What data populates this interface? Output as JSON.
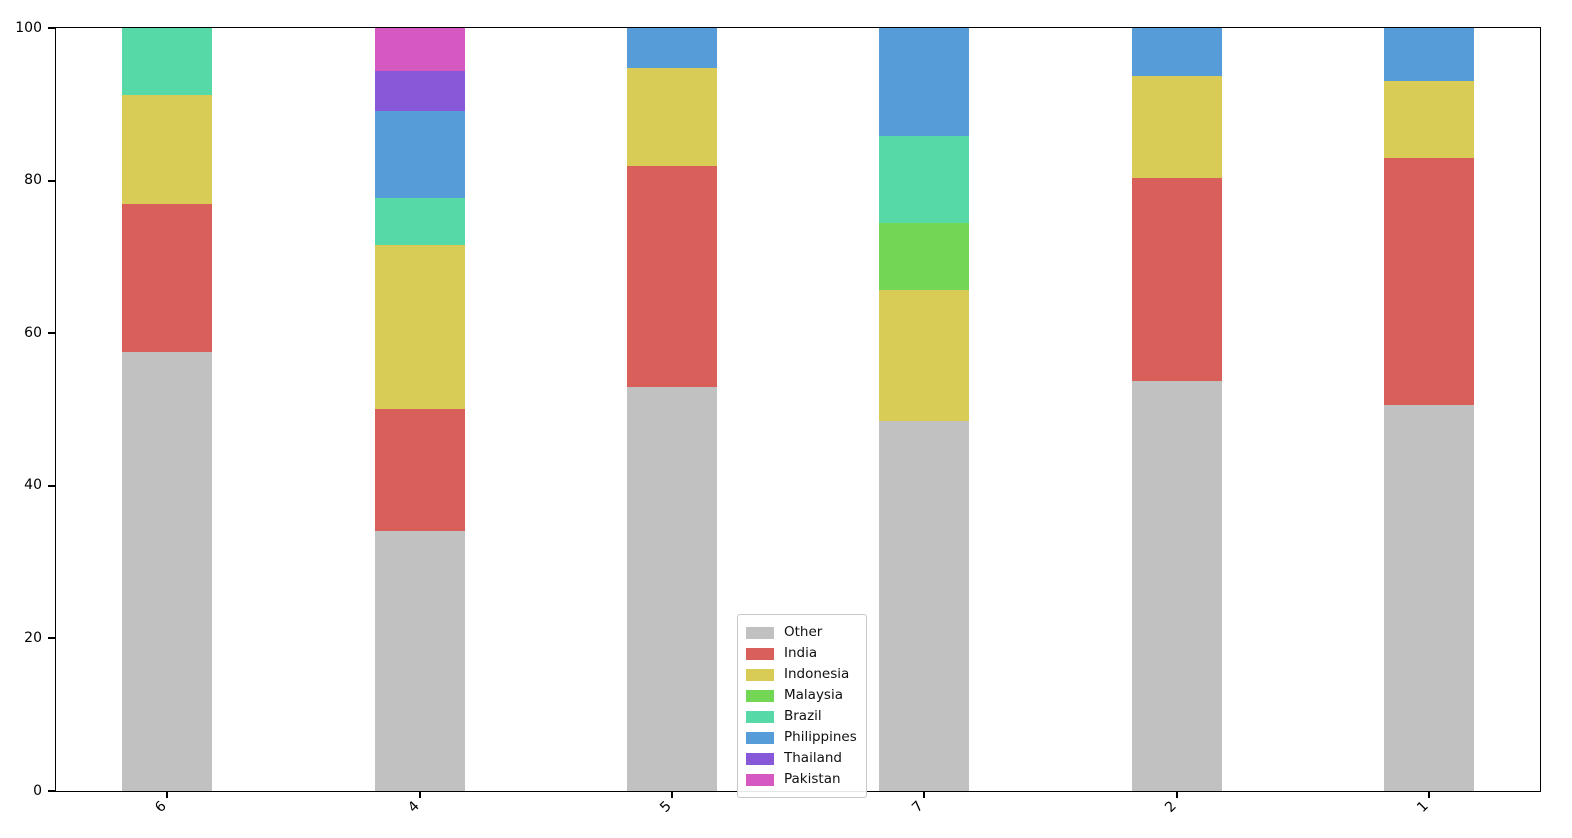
{
  "chart_data": {
    "type": "bar",
    "stacked": true,
    "normalized_percent": true,
    "title": "",
    "xlabel": "",
    "ylabel": "",
    "ylim": [
      0,
      100
    ],
    "yticks": [
      0,
      20,
      40,
      60,
      80,
      100
    ],
    "grid": false,
    "legend_position": "center-bottom-inside",
    "categories": [
      "6",
      "4",
      "5",
      "7",
      "2",
      "1"
    ],
    "series": [
      {
        "name": "Other",
        "color": "#c1c1c1",
        "values": [
          57.5,
          34.1,
          53.0,
          48.5,
          53.8,
          50.6
        ]
      },
      {
        "name": "India",
        "color": "#d9605a",
        "values": [
          19.4,
          16.0,
          28.9,
          0,
          26.6,
          32.4
        ]
      },
      {
        "name": "Indonesia",
        "color": "#d8cb56",
        "values": [
          14.3,
          21.5,
          12.9,
          17.1,
          13.3,
          10.1
        ]
      },
      {
        "name": "Malaysia",
        "color": "#73d655",
        "values": [
          0,
          0,
          0,
          8.9,
          0,
          0
        ]
      },
      {
        "name": "Brazil",
        "color": "#56d8a7",
        "values": [
          8.8,
          6.1,
          0,
          11.3,
          0,
          0
        ]
      },
      {
        "name": "Philippines",
        "color": "#559cd8",
        "values": [
          0,
          11.4,
          5.2,
          14.2,
          6.3,
          6.9
        ]
      },
      {
        "name": "Thailand",
        "color": "#8759d8",
        "values": [
          0,
          5.3,
          0,
          0,
          0,
          0
        ]
      },
      {
        "name": "Pakistan",
        "color": "#d658c1",
        "values": [
          0,
          5.6,
          0,
          0,
          0,
          0
        ]
      }
    ]
  }
}
